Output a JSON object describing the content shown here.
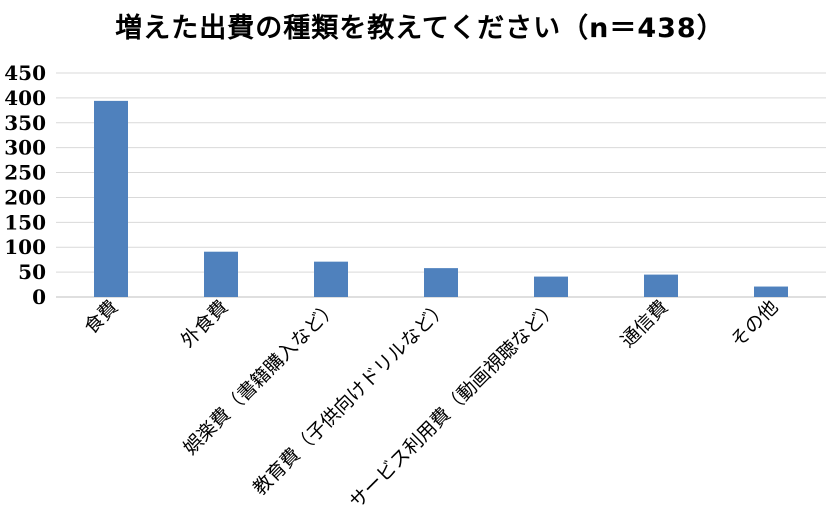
{
  "chart_data": {
    "type": "bar",
    "title": "増えた出費の種類を教えてください（n＝438）",
    "xlabel": "",
    "ylabel": "",
    "categories": [
      "食費",
      "外食費",
      "娯楽費（書籍購入など）",
      "教育費（子供向けドリルなど）",
      "サービス利用費（動画視聴など）",
      "通信費",
      "その他"
    ],
    "values": [
      394,
      91,
      71,
      58,
      41,
      45,
      21
    ],
    "ylim": [
      0,
      450
    ],
    "yticks": [
      0,
      50,
      100,
      150,
      200,
      250,
      300,
      350,
      400,
      450
    ],
    "grid": true,
    "legend": "none",
    "colors": {
      "bar": "#4f81bd",
      "grid": "#d9d9d9"
    }
  }
}
